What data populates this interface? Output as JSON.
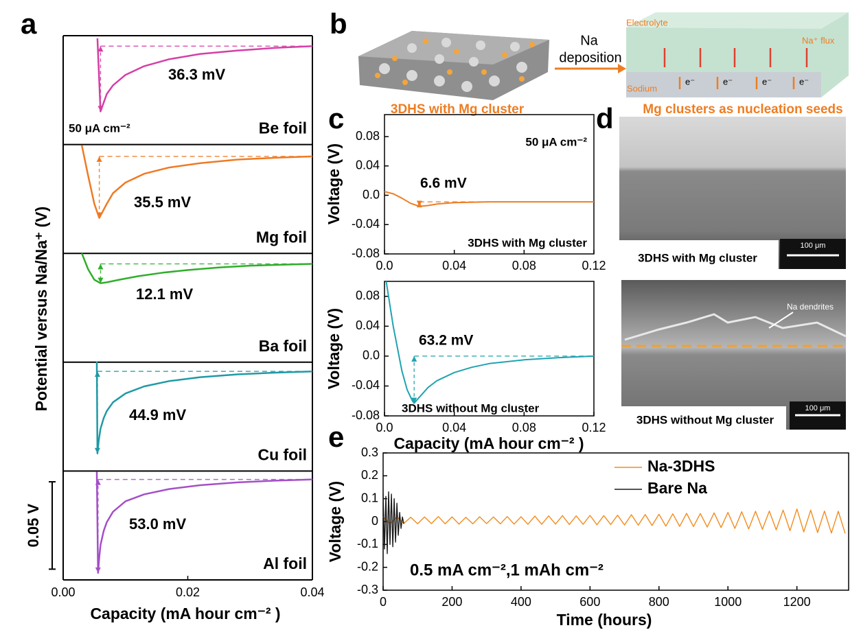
{
  "panel_labels": [
    "a",
    "b",
    "c",
    "d",
    "e"
  ],
  "chart_data": [
    {
      "type": "stacked_line",
      "y_label": "Potential versus Na/Na⁺ (V)",
      "x_label": "Capacity (mA hour cm⁻² )",
      "xlim": [
        0,
        0.04
      ],
      "xticks": [
        {
          "value": 0,
          "label": "0.00"
        },
        0.02,
        0.04
      ],
      "current_label": "50 μA cm⁻²",
      "scale_bar": {
        "value": 0.05,
        "label": "0.05 V"
      },
      "panels": [
        {
          "name": "Be foil",
          "color": "#d43fa6",
          "annotation": "36.3 mV",
          "ylim": [
            -0.057,
            0.0055
          ],
          "x": [
            0.0055,
            0.006,
            0.007,
            0.008,
            0.01,
            0.013,
            0.017,
            0.022,
            0.028,
            0.034,
            0.04
          ],
          "values": [
            0.004,
            -0.038,
            -0.028,
            -0.023,
            -0.017,
            -0.012,
            -0.008,
            -0.005,
            -0.003,
            -0.0015,
            -0.0005
          ]
        },
        {
          "name": "Mg foil",
          "color": "#ef7a23",
          "annotation": "35.5 mV",
          "ylim": [
            -0.056,
            0.0055
          ],
          "x": [
            0.003,
            0.004,
            0.005,
            0.0058,
            0.007,
            0.008,
            0.01,
            0.013,
            0.017,
            0.022,
            0.028,
            0.034,
            0.04
          ],
          "values": [
            0.005,
            -0.012,
            -0.028,
            -0.036,
            -0.028,
            -0.022,
            -0.016,
            -0.011,
            -0.0075,
            -0.005,
            -0.003,
            -0.002,
            -0.0012
          ]
        },
        {
          "name": "Ba foil",
          "color": "#2fae2a",
          "annotation": "12.1 mV",
          "ylim": [
            -0.057,
            0.005
          ],
          "x": [
            0.003,
            0.004,
            0.005,
            0.006,
            0.007,
            0.009,
            0.012,
            0.016,
            0.02,
            0.025,
            0.03,
            0.035,
            0.04
          ],
          "values": [
            0.005,
            -0.004,
            -0.01,
            -0.012,
            -0.0115,
            -0.01,
            -0.008,
            -0.006,
            -0.0045,
            -0.003,
            -0.002,
            -0.0015,
            -0.001
          ]
        },
        {
          "name": "Cu foil",
          "color": "#1f9aa5",
          "annotation": "44.9 mV",
          "ylim": [
            -0.057,
            0.0047
          ],
          "x": [
            0.0054,
            0.0055,
            0.0057,
            0.006,
            0.0065,
            0.007,
            0.008,
            0.01,
            0.013,
            0.017,
            0.022,
            0.028,
            0.034,
            0.04
          ],
          "values": [
            0.005,
            -0.047,
            -0.04,
            -0.033,
            -0.027,
            -0.023,
            -0.018,
            -0.013,
            -0.009,
            -0.006,
            -0.0038,
            -0.0022,
            -0.0012,
            -0.0005
          ]
        },
        {
          "name": "Al foil",
          "color": "#a44fc8",
          "annotation": "53.0 mV",
          "ylim": [
            -0.058,
            0.0043
          ],
          "x": [
            0.0054,
            0.0056,
            0.0058,
            0.006,
            0.0065,
            0.007,
            0.008,
            0.01,
            0.013,
            0.017,
            0.022,
            0.028,
            0.034,
            0.04
          ],
          "values": [
            0.004,
            -0.054,
            -0.045,
            -0.038,
            -0.03,
            -0.025,
            -0.019,
            -0.013,
            -0.009,
            -0.006,
            -0.0038,
            -0.0022,
            -0.0012,
            -0.0005
          ]
        }
      ]
    },
    {
      "type": "line",
      "y_label": "Voltage (V)",
      "xlim": [
        0,
        0.12
      ],
      "xticks": [
        {
          "value": 0,
          "label": "0.0"
        },
        0.04,
        0.08,
        0.12
      ],
      "ylim": [
        -0.08,
        0.11
      ],
      "yticks": [
        -0.08,
        -0.04,
        {
          "value": 0,
          "label": "0.0"
        },
        0.04,
        0.08
      ],
      "annotation": "6.6 mV",
      "current_label": "50 μA cm⁻²",
      "caption": "3DHS with Mg cluster",
      "series": [
        {
          "color": "#ee7d22",
          "x": [
            0,
            0.005,
            0.01,
            0.015,
            0.02,
            0.025,
            0.03,
            0.04,
            0.06,
            0.08,
            0.1,
            0.12
          ],
          "values": [
            0.005,
            0.002,
            -0.004,
            -0.011,
            -0.015,
            -0.014,
            -0.012,
            -0.01,
            -0.009,
            -0.009,
            -0.009,
            -0.009
          ]
        }
      ]
    },
    {
      "type": "line",
      "y_label": "Voltage (V)",
      "x_label": "Capacity (mA hour cm⁻² )",
      "xlim": [
        0,
        0.12
      ],
      "xticks": [
        {
          "value": 0,
          "label": "0.0"
        },
        0.04,
        0.08,
        0.12
      ],
      "ylim": [
        -0.08,
        0.1
      ],
      "yticks": [
        -0.08,
        -0.04,
        {
          "value": 0,
          "label": "0.0"
        },
        0.04,
        0.08
      ],
      "annotation": "63.2 mV",
      "caption": "3DHS without Mg cluster",
      "series": [
        {
          "color": "#1fa3b0",
          "x": [
            0.001,
            0.005,
            0.01,
            0.013,
            0.016,
            0.017,
            0.02,
            0.025,
            0.03,
            0.04,
            0.05,
            0.06,
            0.08,
            0.1,
            0.12
          ],
          "values": [
            0.1,
            0.04,
            -0.02,
            -0.045,
            -0.06,
            -0.063,
            -0.055,
            -0.042,
            -0.033,
            -0.022,
            -0.015,
            -0.01,
            -0.005,
            -0.002,
            0
          ]
        }
      ]
    },
    {
      "type": "line",
      "y_label": "Voltage (V)",
      "x_label": "Time (hours)",
      "xlim": [
        0,
        1350
      ],
      "xticks": [
        0,
        200,
        400,
        600,
        800,
        1000,
        1200
      ],
      "ylim": [
        -0.3,
        0.3
      ],
      "yticks": [
        -0.3,
        -0.2,
        -0.1,
        0,
        0.1,
        0.2,
        0.3
      ],
      "annotation": "0.5 mA cm⁻²,1 mAh cm⁻²",
      "legend": "upper right",
      "series": [
        {
          "name": "Na-3DHS",
          "color": "#f28c1e",
          "x": [
            0,
            20,
            40,
            60,
            80,
            100,
            120,
            140,
            160,
            180,
            200,
            220,
            240,
            260,
            280,
            300,
            320,
            340,
            360,
            380,
            400,
            420,
            440,
            460,
            480,
            500,
            520,
            540,
            560,
            580,
            600,
            620,
            640,
            660,
            680,
            700,
            720,
            740,
            760,
            780,
            800,
            820,
            840,
            860,
            880,
            900,
            920,
            940,
            960,
            980,
            1000,
            1020,
            1040,
            1060,
            1080,
            1100,
            1120,
            1140,
            1160,
            1180,
            1200,
            1220,
            1240,
            1260,
            1280,
            1300,
            1320,
            1340
          ],
          "values": [
            0.02,
            -0.01,
            0.021,
            -0.008,
            0.019,
            -0.01,
            0.02,
            -0.009,
            0.022,
            -0.01,
            0.02,
            -0.011,
            0.019,
            -0.01,
            0.021,
            -0.009,
            0.02,
            -0.01,
            0.022,
            -0.011,
            0.021,
            -0.012,
            0.024,
            -0.012,
            0.025,
            -0.011,
            0.026,
            -0.013,
            0.025,
            -0.012,
            0.027,
            -0.014,
            0.026,
            -0.013,
            0.028,
            -0.015,
            0.03,
            -0.016,
            0.031,
            -0.017,
            0.032,
            -0.02,
            0.034,
            -0.021,
            0.036,
            -0.022,
            0.035,
            -0.024,
            0.038,
            -0.026,
            0.04,
            -0.03,
            0.043,
            -0.032,
            0.045,
            -0.034,
            0.046,
            -0.036,
            0.05,
            -0.04,
            0.055,
            -0.045,
            0.05,
            -0.048,
            0.046,
            -0.05,
            0.045,
            -0.052
          ]
        },
        {
          "name": "Bare Na",
          "color": "#1a1a1a",
          "x": [
            0,
            4,
            8,
            12,
            16,
            20,
            24,
            28,
            32,
            36,
            40,
            44,
            48,
            52,
            56,
            60
          ],
          "values": [
            0.12,
            -0.12,
            0.11,
            -0.14,
            0.13,
            -0.1,
            0.12,
            -0.11,
            0.1,
            -0.09,
            0.08,
            -0.06,
            0.04,
            -0.03,
            0.02,
            -0.01
          ]
        }
      ]
    }
  ],
  "schematic": {
    "arrow_label_1": "Na",
    "arrow_label_2": "deposition",
    "electrolyte": "Electrolyte",
    "flux": "Na⁺ flux",
    "sodium": "Sodium",
    "electrons": [
      "e⁻",
      "e⁻",
      "e⁻",
      "e⁻"
    ],
    "left_caption": "3DHS with Mg cluster",
    "right_caption": "Mg clusters as nucleation seeds"
  },
  "micrographs": [
    {
      "caption": "3DHS with Mg cluster",
      "scale_bar": "100 μm"
    },
    {
      "caption": "3DHS without Mg cluster",
      "scale_bar": "100 μm",
      "annotation": "Na dendrites"
    }
  ]
}
